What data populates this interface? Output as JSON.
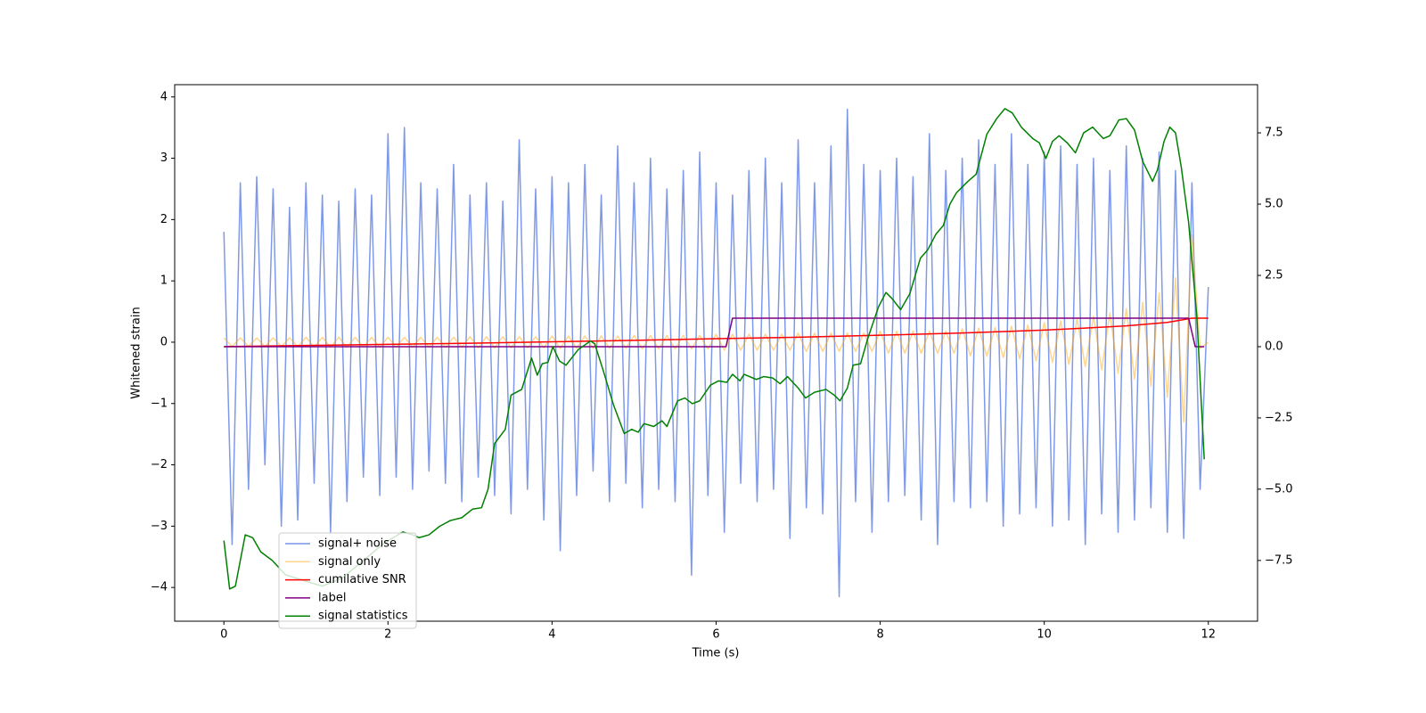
{
  "chart_data": {
    "type": "line",
    "xlabel": "Time (s)",
    "ylabel": "Whitened strain",
    "xlim": [
      -0.6,
      12.6
    ],
    "ylim": [
      -4.55,
      4.2
    ],
    "y2lim": [
      -9.63,
      9.19
    ],
    "xticks": [
      0,
      2,
      4,
      6,
      8,
      10,
      12
    ],
    "yticks": [
      {
        "value": -4,
        "label": "−4"
      },
      {
        "value": -3,
        "label": "−3"
      },
      {
        "value": -2,
        "label": "−2"
      },
      {
        "value": -1,
        "label": "−1"
      },
      0,
      1,
      2,
      3,
      4
    ],
    "y2ticks": [
      {
        "value": -7.5,
        "label": "−7.5"
      },
      {
        "value": -5,
        "label": "−5.0"
      },
      {
        "value": -2.5,
        "label": "−2.5"
      },
      {
        "value": 0,
        "label": "0.0"
      },
      2.5,
      {
        "value": 5,
        "label": "5.0"
      },
      7.5
    ],
    "x": [
      0,
      0.1,
      0.2,
      0.3,
      0.4,
      0.5,
      0.6,
      0.7,
      0.8,
      0.9,
      1,
      1.1,
      1.2,
      1.3,
      1.4,
      1.5,
      1.6,
      1.7,
      1.8,
      1.9,
      2,
      2.1,
      2.2,
      2.3,
      2.4,
      2.5,
      2.6,
      2.7,
      2.8,
      2.9,
      3,
      3.1,
      3.2,
      3.3,
      3.4,
      3.5,
      3.6,
      3.7,
      3.8,
      3.9,
      4,
      4.1,
      4.2,
      4.3,
      4.4,
      4.5,
      4.6,
      4.7,
      4.8,
      4.9,
      5,
      5.1,
      5.2,
      5.3,
      5.4,
      5.5,
      5.6,
      5.7,
      5.8,
      5.9,
      6,
      6.1,
      6.2,
      6.3,
      6.4,
      6.5,
      6.6,
      6.7,
      6.8,
      6.9,
      7,
      7.1,
      7.2,
      7.3,
      7.4,
      7.5,
      7.6,
      7.7,
      7.8,
      7.9,
      8,
      8.1,
      8.2,
      8.3,
      8.4,
      8.5,
      8.6,
      8.7,
      8.8,
      8.9,
      9,
      9.1,
      9.2,
      9.3,
      9.4,
      9.5,
      9.6,
      9.7,
      9.8,
      9.9,
      10,
      10.1,
      10.2,
      10.3,
      10.4,
      10.5,
      10.6,
      10.7,
      10.8,
      10.9,
      11,
      11.1,
      11.2,
      11.3,
      11.4,
      11.5,
      11.6,
      11.7,
      11.8,
      11.9,
      12
    ],
    "series": [
      {
        "name": "signal+ noise",
        "color": "#7893e8",
        "values": [
          1.8,
          -3.3,
          2.6,
          -2.4,
          2.7,
          -2.0,
          2.5,
          -3.0,
          2.2,
          -2.9,
          2.6,
          -2.3,
          2.4,
          -3.1,
          2.3,
          -2.6,
          2.5,
          -2.2,
          2.4,
          -2.5,
          3.4,
          -2.2,
          3.5,
          -2.4,
          2.6,
          -2.1,
          2.5,
          -2.3,
          2.9,
          -2.6,
          2.4,
          -2.2,
          2.6,
          -2.5,
          2.3,
          -2.8,
          3.3,
          -2.4,
          2.5,
          -2.9,
          2.7,
          -3.4,
          2.6,
          -2.5,
          2.9,
          -2.1,
          2.4,
          -2.6,
          3.2,
          -2.3,
          2.6,
          -2.7,
          3.0,
          -2.4,
          2.5,
          -2.6,
          2.8,
          -3.8,
          3.1,
          -2.5,
          2.6,
          -3.1,
          2.4,
          -2.3,
          2.8,
          -2.6,
          3.0,
          -2.4,
          2.6,
          -3.2,
          3.3,
          -2.7,
          2.6,
          -2.8,
          3.2,
          -4.15,
          3.8,
          -2.6,
          2.9,
          -3.1,
          2.8,
          -2.6,
          3.0,
          -2.5,
          2.7,
          -2.9,
          3.4,
          -3.3,
          2.8,
          -2.6,
          3.0,
          -2.7,
          3.3,
          -2.6,
          2.9,
          -3.0,
          3.4,
          -2.8,
          2.9,
          -2.7,
          3.1,
          -3.0,
          3.2,
          -2.9,
          2.9,
          -3.3,
          3.0,
          -2.8,
          2.8,
          -3.1,
          3.2,
          -2.9,
          3.0,
          -2.7,
          3.1,
          -3.1,
          2.8,
          -3.2,
          2.6,
          -2.4,
          0.9
        ]
      },
      {
        "name": "signal only",
        "color": "#ffa500",
        "values": [
          0.07,
          -0.07,
          0.07,
          -0.07,
          0.07,
          -0.07,
          0.07,
          -0.07,
          0.07,
          -0.07,
          0.08,
          -0.08,
          0.08,
          -0.08,
          0.08,
          -0.08,
          0.08,
          -0.08,
          0.08,
          -0.08,
          0.08,
          -0.08,
          0.08,
          -0.08,
          0.08,
          -0.08,
          0.08,
          -0.08,
          0.08,
          -0.08,
          0.09,
          -0.09,
          0.09,
          -0.09,
          0.09,
          -0.09,
          0.09,
          -0.09,
          0.09,
          -0.09,
          0.1,
          -0.1,
          0.1,
          -0.1,
          0.1,
          -0.1,
          0.1,
          -0.1,
          0.1,
          -0.1,
          0.11,
          -0.11,
          0.11,
          -0.11,
          0.11,
          -0.11,
          0.11,
          -0.11,
          0.11,
          -0.11,
          0.13,
          -0.13,
          0.13,
          -0.13,
          0.13,
          -0.13,
          0.13,
          -0.13,
          0.13,
          -0.13,
          0.15,
          -0.15,
          0.15,
          -0.15,
          0.15,
          -0.15,
          0.15,
          -0.15,
          0.15,
          -0.15,
          0.18,
          -0.18,
          0.18,
          -0.18,
          0.18,
          -0.18,
          0.18,
          -0.18,
          0.18,
          -0.18,
          0.22,
          -0.22,
          0.23,
          -0.23,
          0.24,
          -0.25,
          0.26,
          -0.27,
          0.28,
          -0.3,
          0.32,
          -0.33,
          0.35,
          -0.36,
          0.38,
          -0.4,
          0.42,
          -0.45,
          0.48,
          -0.51,
          0.55,
          -0.6,
          0.65,
          -0.72,
          0.8,
          -0.9,
          1.05,
          -1.3,
          1.75,
          -0.1,
          0
        ]
      },
      {
        "name": "cumilative SNR",
        "color": "red",
        "axis": "y2",
        "x": [
          0,
          1,
          2,
          3,
          4,
          5,
          6,
          7,
          8,
          9,
          10,
          10.5,
          11,
          11.5,
          11.8,
          12
        ],
        "values": [
          0,
          0.04,
          0.08,
          0.12,
          0.17,
          0.22,
          0.28,
          0.33,
          0.4,
          0.48,
          0.58,
          0.65,
          0.73,
          0.85,
          1,
          1
        ]
      },
      {
        "name": "label",
        "color": "purple",
        "axis": "y2",
        "x": [
          0,
          6.12,
          6.2,
          11.76,
          11.84,
          11.95
        ],
        "values": [
          0,
          0,
          1,
          1,
          0,
          0
        ]
      },
      {
        "name": "signal statistics",
        "color": "green",
        "axis": "y2",
        "x": [
          0,
          0.07,
          0.14,
          0.26,
          0.35,
          0.45,
          0.59,
          0.75,
          0.97,
          1.2,
          1.45,
          1.7,
          1.95,
          2.18,
          2.3,
          2.38,
          2.5,
          2.63,
          2.76,
          2.9,
          3.03,
          3.14,
          3.22,
          3.3,
          3.43,
          3.5,
          3.63,
          3.75,
          3.82,
          3.88,
          3.95,
          4.01,
          4.09,
          4.17,
          4.32,
          4.47,
          4.52,
          4.62,
          4.75,
          4.88,
          4.97,
          5.05,
          5.12,
          5.24,
          5.34,
          5.4,
          5.53,
          5.62,
          5.71,
          5.8,
          5.93,
          6.03,
          6.13,
          6.2,
          6.29,
          6.34,
          6.49,
          6.58,
          6.69,
          6.78,
          6.87,
          7.0,
          7.09,
          7.2,
          7.34,
          7.44,
          7.51,
          7.6,
          7.67,
          7.76,
          7.85,
          7.98,
          8.07,
          8.14,
          8.25,
          8.36,
          8.49,
          8.58,
          8.68,
          8.77,
          8.85,
          8.93,
          9.07,
          9.17,
          9.3,
          9.42,
          9.52,
          9.61,
          9.72,
          9.86,
          9.94,
          10.02,
          10.1,
          10.18,
          10.28,
          10.38,
          10.48,
          10.59,
          10.72,
          10.8,
          10.91,
          11.0,
          11.1,
          11.2,
          11.32,
          11.38,
          11.46,
          11.53,
          11.6,
          11.67,
          11.76,
          11.86,
          11.95
        ],
        "values": [
          -6.8,
          -8.5,
          -8.4,
          -6.6,
          -6.7,
          -7.2,
          -7.5,
          -8.0,
          -8.2,
          -8.4,
          -8.1,
          -7.5,
          -6.9,
          -6.5,
          -6.6,
          -6.7,
          -6.6,
          -6.3,
          -6.1,
          -6.0,
          -5.7,
          -5.65,
          -5.0,
          -3.4,
          -2.9,
          -1.7,
          -1.5,
          -0.4,
          -1.0,
          -0.6,
          -0.55,
          0,
          -0.5,
          -0.65,
          -0.1,
          0.2,
          0.1,
          -0.8,
          -2.05,
          -3.05,
          -2.9,
          -3.0,
          -2.7,
          -2.8,
          -2.6,
          -2.8,
          -1.9,
          -1.8,
          -2.0,
          -1.9,
          -1.35,
          -1.2,
          -1.25,
          -0.97,
          -1.2,
          -0.97,
          -1.15,
          -1.05,
          -1.1,
          -1.3,
          -1.05,
          -1.45,
          -1.8,
          -1.6,
          -1.5,
          -1.7,
          -1.9,
          -1.45,
          -0.65,
          -0.6,
          0.3,
          1.4,
          1.9,
          1.7,
          1.3,
          1.85,
          3.1,
          3.4,
          3.95,
          4.25,
          5.0,
          5.4,
          5.8,
          6.05,
          7.45,
          8.0,
          8.35,
          8.2,
          7.7,
          7.3,
          7.15,
          6.6,
          7.2,
          7.4,
          7.15,
          6.8,
          7.5,
          7.7,
          7.3,
          7.4,
          7.95,
          8.0,
          7.6,
          6.5,
          5.8,
          6.2,
          7.2,
          7.7,
          7.5,
          6.3,
          4.35,
          1.05,
          -3.95
        ]
      }
    ]
  }
}
